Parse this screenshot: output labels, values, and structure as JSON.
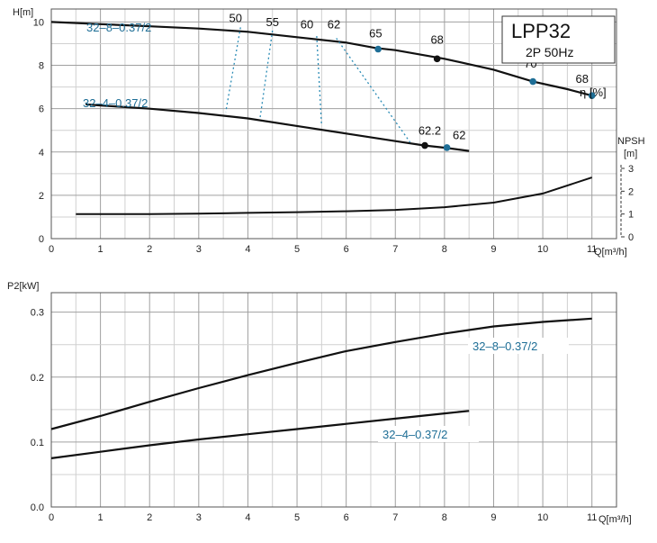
{
  "info_box": {
    "title": "LPP32",
    "subtitle": "2P  50Hz"
  },
  "chart_data": [
    {
      "type": "line",
      "name": "head",
      "ylabel": "H[m]",
      "xlabel": "Q[m³/h]",
      "xlim": [
        0,
        11.5
      ],
      "ylim": [
        0,
        10.6
      ],
      "x_ticks": [
        "0",
        "1",
        "2",
        "3",
        "4",
        "5",
        "6",
        "7",
        "8",
        "9",
        "10",
        "11"
      ],
      "y_ticks": [
        "0",
        "2",
        "4",
        "6",
        "8",
        "10"
      ],
      "series": [
        {
          "name": "32–8–0.37/2",
          "x": [
            0,
            1,
            2,
            3,
            4,
            5,
            6,
            6.6,
            7,
            8,
            9,
            9.8,
            10.5,
            11
          ],
          "y": [
            10.0,
            9.9,
            9.8,
            9.7,
            9.55,
            9.3,
            9.05,
            8.8,
            8.7,
            8.3,
            7.8,
            7.25,
            6.9,
            6.6
          ]
        },
        {
          "name": "32–4–0.37/2",
          "x": [
            0.7,
            1,
            2,
            3,
            4,
            5,
            6,
            7,
            7.6,
            8,
            8.5
          ],
          "y": [
            6.2,
            6.15,
            6.0,
            5.8,
            5.55,
            5.2,
            4.85,
            4.5,
            4.3,
            4.2,
            4.05
          ]
        }
      ],
      "npsh": {
        "label": "NPSH",
        "unit": "[m]",
        "ticks": [
          "0",
          "1",
          "2",
          "3"
        ],
        "x": [
          0.5,
          1,
          2,
          3,
          4,
          5,
          6,
          7,
          8,
          9,
          10,
          11
        ],
        "y": [
          1.0,
          1.0,
          1.0,
          1.02,
          1.05,
          1.08,
          1.12,
          1.18,
          1.3,
          1.5,
          1.9,
          2.6
        ]
      },
      "efficiency": {
        "label": "η [%]",
        "labels": [
          {
            "text": "50",
            "x": 3.75,
            "y": 10.0
          },
          {
            "text": "55",
            "x": 4.5,
            "y": 9.8
          },
          {
            "text": "60",
            "x": 5.2,
            "y": 9.7
          },
          {
            "text": "62",
            "x": 5.75,
            "y": 9.7
          },
          {
            "text": "65",
            "x": 6.6,
            "y": 9.3
          },
          {
            "text": "68",
            "x": 7.85,
            "y": 9.0
          },
          {
            "text": "70",
            "x": 9.75,
            "y": 7.9
          },
          {
            "text": "68",
            "x": 10.8,
            "y": 7.2
          },
          {
            "text": "62.2",
            "x": 7.7,
            "y": 4.8
          },
          {
            "text": "62",
            "x": 8.3,
            "y": 4.6
          }
        ],
        "points": [
          {
            "x": 6.65,
            "y": 8.75,
            "color": "#1e6e96"
          },
          {
            "x": 7.85,
            "y": 8.3,
            "color": "#111111"
          },
          {
            "x": 9.8,
            "y": 7.25,
            "color": "#1e6e96"
          },
          {
            "x": 11.0,
            "y": 6.6,
            "color": "#1e6e96"
          },
          {
            "x": 7.6,
            "y": 4.3,
            "color": "#111111"
          },
          {
            "x": 8.05,
            "y": 4.2,
            "color": "#1e6e96"
          }
        ],
        "iso_lines": [
          {
            "from": [
              3.85,
              9.75
            ],
            "to": [
              3.55,
              5.85
            ]
          },
          {
            "from": [
              4.5,
              9.6
            ],
            "to": [
              4.25,
              5.6
            ]
          },
          {
            "from": [
              5.4,
              9.35
            ],
            "to": [
              5.5,
              5.2
            ]
          },
          {
            "from": [
              5.8,
              9.25
            ],
            "to": [
              7.3,
              4.45
            ]
          }
        ]
      }
    },
    {
      "type": "line",
      "name": "power",
      "ylabel": "P2[kW]",
      "xlabel": "Q[m³/h]",
      "xlim": [
        0,
        11.5
      ],
      "ylim": [
        0,
        0.33
      ],
      "x_ticks": [
        "0",
        "1",
        "2",
        "3",
        "4",
        "5",
        "6",
        "7",
        "8",
        "9",
        "10",
        "11"
      ],
      "y_ticks": [
        "0.0",
        "0.1",
        "0.2",
        "0.3"
      ],
      "series": [
        {
          "name": "32–8–0.37/2",
          "x": [
            0,
            1,
            2,
            3,
            4,
            5,
            6,
            7,
            8,
            9,
            10,
            11
          ],
          "y": [
            0.12,
            0.14,
            0.162,
            0.183,
            0.203,
            0.222,
            0.24,
            0.254,
            0.267,
            0.278,
            0.285,
            0.29
          ]
        },
        {
          "name": "32–4–0.37/2",
          "x": [
            0,
            1,
            2,
            3,
            4,
            5,
            6,
            7,
            8,
            8.5
          ],
          "y": [
            0.075,
            0.085,
            0.095,
            0.104,
            0.112,
            0.12,
            0.128,
            0.136,
            0.144,
            0.148
          ]
        }
      ]
    }
  ]
}
